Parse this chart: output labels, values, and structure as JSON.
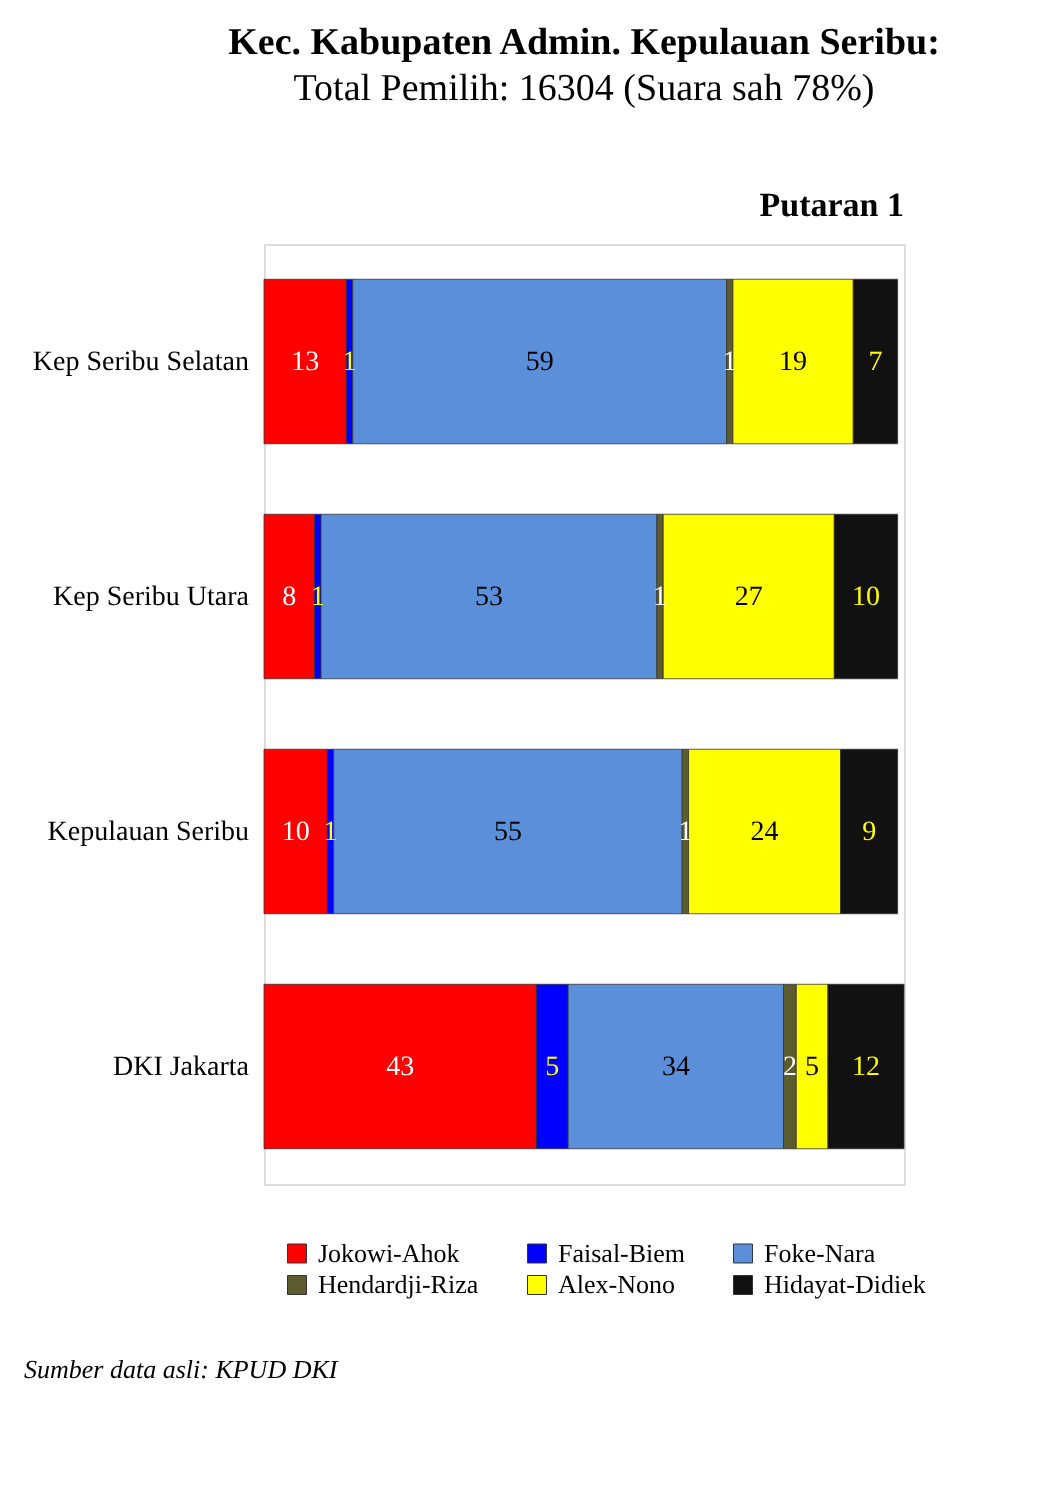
{
  "chart_data": {
    "type": "bar",
    "orientation": "horizontal",
    "stacked": true,
    "data_labels": true,
    "grid": false,
    "legend": "bottom",
    "tick_labels": "y",
    "title": "Kec. Kabupaten Admin. Kepulauan Seribu:",
    "subtitle": "Total Pemilih: 16304 (Suara sah 78%)",
    "annotations": [
      "Putaran 1",
      "Sumber data asli: KPUD DKI"
    ],
    "categories": [
      "Kep Seribu Selatan",
      "Kep Seribu Utara",
      "Kepulauan Seribu",
      "DKI Jakarta"
    ],
    "series": [
      {
        "name": "Jokowi-Ahok",
        "color": "#ff0000",
        "values": [
          13,
          8,
          10,
          43
        ]
      },
      {
        "name": "Faisal-Biem",
        "color": "#0000ff",
        "values": [
          1,
          1,
          1,
          5
        ]
      },
      {
        "name": "Foke-Nara",
        "color": "#5b8fd9",
        "values": [
          59,
          53,
          55,
          34
        ]
      },
      {
        "name": "Hendardji-Riza",
        "color": "#5c5c2e",
        "values": [
          1,
          1,
          1,
          2
        ]
      },
      {
        "name": "Alex-Nono",
        "color": "#ffff00",
        "values": [
          19,
          27,
          24,
          5
        ]
      },
      {
        "name": "Hidayat-Didiek",
        "color": "#111111",
        "values": [
          7,
          10,
          9,
          12
        ]
      }
    ]
  }
}
